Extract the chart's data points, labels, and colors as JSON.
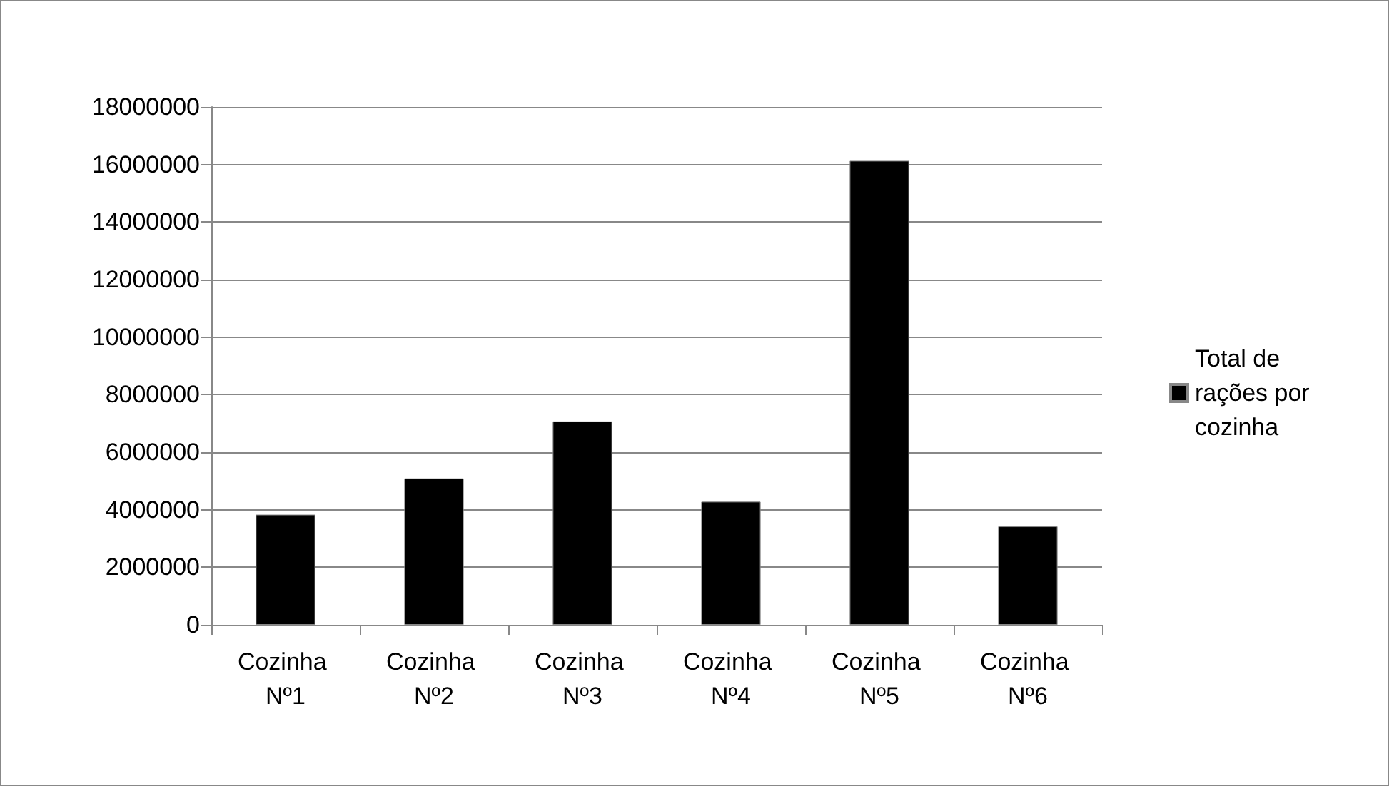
{
  "chart_data": {
    "type": "bar",
    "categories": [
      "Cozinha Nº1",
      "Cozinha Nº2",
      "Cozinha Nº3",
      "Cozinha Nº4",
      "Cozinha Nº5",
      "Cozinha Nº6"
    ],
    "series": [
      {
        "name": "Total de rações por cozinha",
        "color": "#000000",
        "values": [
          3830000,
          5090000,
          7070000,
          4280000,
          16130000,
          3420000
        ]
      }
    ],
    "ylim": [
      0,
      18000000
    ],
    "yticks": [
      0,
      2000000,
      4000000,
      6000000,
      8000000,
      10000000,
      12000000,
      14000000,
      16000000,
      18000000
    ],
    "grid": "y",
    "legend": "right"
  }
}
